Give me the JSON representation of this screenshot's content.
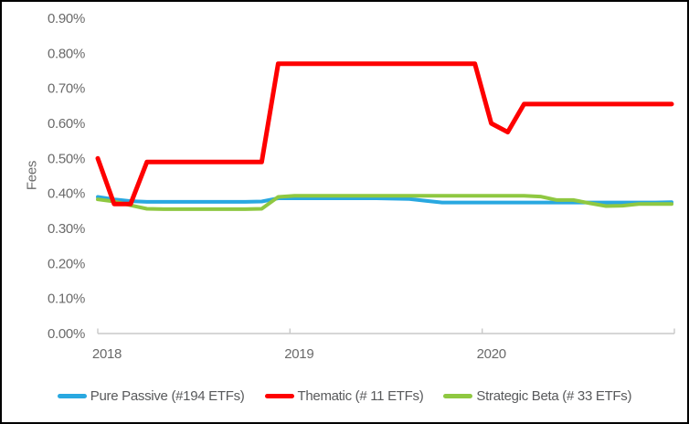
{
  "window": {
    "background": "#ffffff",
    "border_color": "#000000"
  },
  "chart_data": {
    "type": "line",
    "title": "",
    "ylabel": "Fees",
    "xlabel": "",
    "grid": false,
    "legend_position": "bottom",
    "axis_color": "#c9c9c9",
    "tick_label_color": "#6a6a6a",
    "legend_text_color": "#58595b",
    "y_axis_format": "percent",
    "ylim_percent": [
      0.0,
      0.9
    ],
    "y_tick_labels": [
      "0.90%",
      "0.80%",
      "0.70%",
      "0.60%",
      "0.50%",
      "0.40%",
      "0.30%",
      "0.20%",
      "0.10%",
      "0.00%"
    ],
    "x_tick_labels": [
      "2018",
      "2019",
      "2020"
    ],
    "x_unit": "month",
    "x_points": 36,
    "x_range": [
      "Jan 2018",
      "Dec 2020"
    ],
    "series": [
      {
        "name": "Pure Passive (#194 ETFs)",
        "color": "#29a8e0",
        "stroke_width": 4,
        "values_percent": [
          0.39,
          0.383,
          0.378,
          0.376,
          0.376,
          0.376,
          0.376,
          0.376,
          0.376,
          0.376,
          0.377,
          0.386,
          0.386,
          0.386,
          0.386,
          0.386,
          0.386,
          0.386,
          0.385,
          0.384,
          0.379,
          0.374,
          0.374,
          0.374,
          0.374,
          0.374,
          0.374,
          0.374,
          0.374,
          0.374,
          0.374,
          0.374,
          0.374,
          0.374,
          0.374,
          0.375
        ]
      },
      {
        "name": "Thematic (# 11 ETFs)",
        "color": "#fe0000",
        "stroke_width": 5,
        "values_percent": [
          0.5,
          0.37,
          0.37,
          0.49,
          0.49,
          0.49,
          0.49,
          0.49,
          0.49,
          0.49,
          0.49,
          0.77,
          0.77,
          0.77,
          0.77,
          0.77,
          0.77,
          0.77,
          0.77,
          0.77,
          0.77,
          0.77,
          0.77,
          0.77,
          0.6,
          0.575,
          0.655,
          0.655,
          0.655,
          0.655,
          0.655,
          0.655,
          0.655,
          0.655,
          0.655,
          0.655
        ]
      },
      {
        "name": "Strategic Beta (# 33 ETFs)",
        "color": "#8fc841",
        "stroke_width": 4,
        "values_percent": [
          0.383,
          0.377,
          0.366,
          0.356,
          0.355,
          0.355,
          0.355,
          0.355,
          0.355,
          0.355,
          0.356,
          0.39,
          0.393,
          0.393,
          0.393,
          0.393,
          0.393,
          0.393,
          0.393,
          0.393,
          0.393,
          0.393,
          0.393,
          0.393,
          0.393,
          0.393,
          0.393,
          0.391,
          0.381,
          0.381,
          0.372,
          0.364,
          0.365,
          0.37,
          0.37,
          0.37
        ]
      }
    ]
  }
}
